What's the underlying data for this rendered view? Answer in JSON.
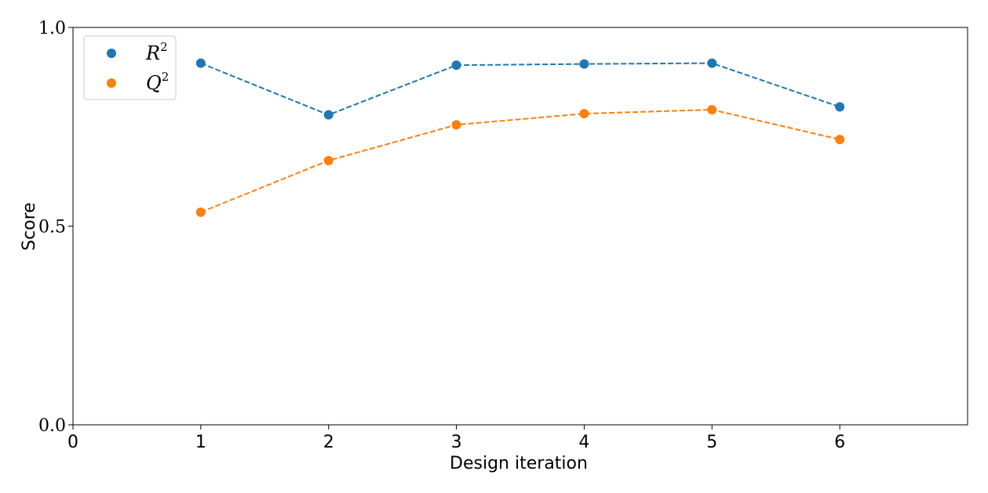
{
  "chart_data": {
    "type": "line",
    "xlabel": "Design iteration",
    "ylabel": "Score",
    "xlim": [
      0,
      7
    ],
    "ylim": [
      0.0,
      1.0
    ],
    "xticks": [
      0,
      1,
      2,
      3,
      4,
      5,
      6
    ],
    "yticks": [
      0.0,
      0.5,
      1.0
    ],
    "ytick_labels": [
      "0.0",
      "0.5",
      "1.0"
    ],
    "grid": false,
    "legend_position": "top-left",
    "x": [
      1,
      2,
      3,
      4,
      5,
      6
    ],
    "series": [
      {
        "name": "R2",
        "label_base": "R",
        "label_sup": "2",
        "color": "#1f77b4",
        "line_style": "dashed",
        "values": [
          0.91,
          0.78,
          0.905,
          0.908,
          0.91,
          0.8
        ]
      },
      {
        "name": "Q2",
        "label_base": "Q",
        "label_sup": "2",
        "color": "#ff7f0e",
        "line_style": "dashed",
        "values": [
          0.535,
          0.665,
          0.755,
          0.783,
          0.793,
          0.718
        ]
      }
    ]
  }
}
